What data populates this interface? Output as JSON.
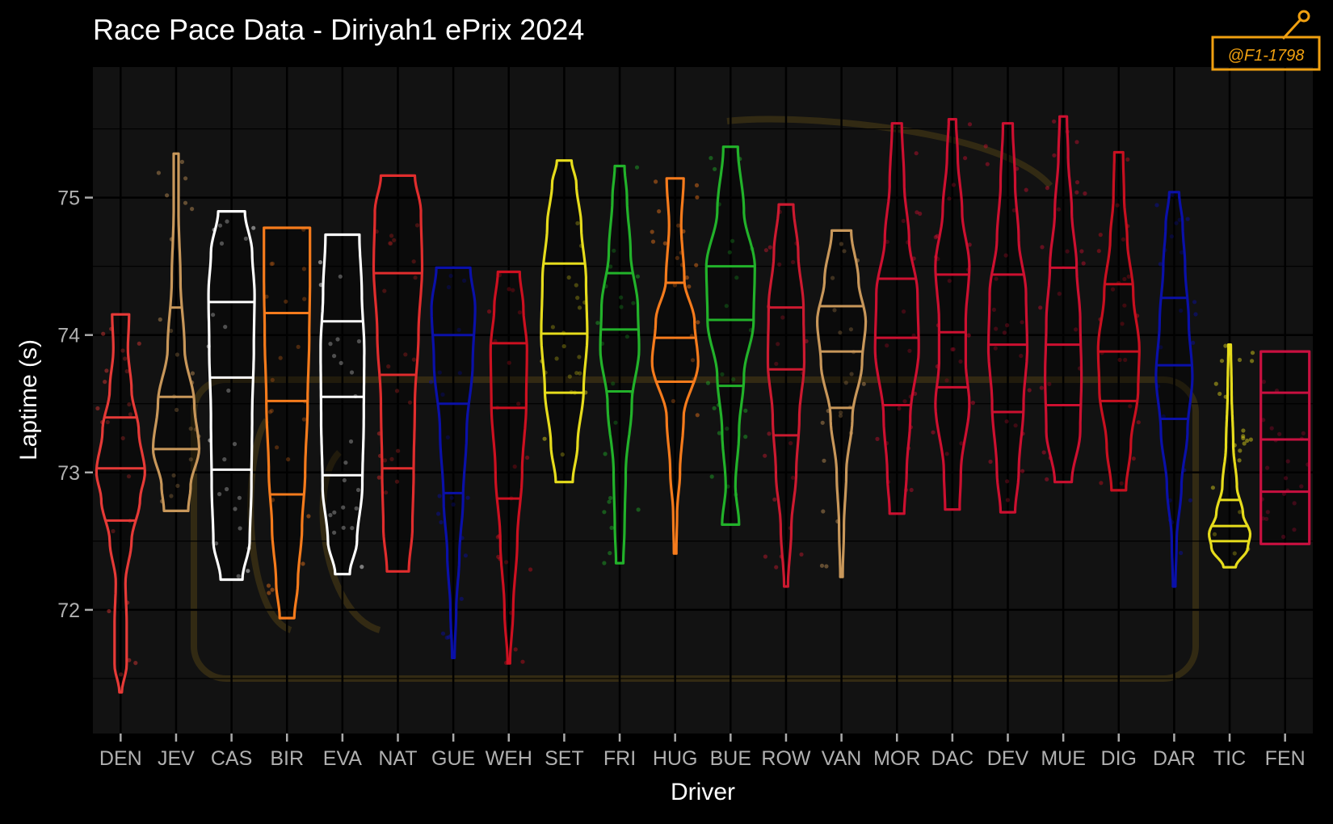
{
  "chart_data": {
    "type": "violin",
    "title": "Race Pace Data - Diriyah1 ePrix 2024",
    "xlabel": "Driver",
    "ylabel": "Laptime (s)",
    "ylim": [
      71.1,
      75.95
    ],
    "yticks": [
      72,
      73,
      74,
      75
    ],
    "grid": true,
    "legend": "none",
    "watermark_text": "@F1-1798",
    "drivers": [
      {
        "name": "DEN",
        "color": "#e63a37",
        "min": 71.4,
        "max": 74.15,
        "quartiles": [
          72.65,
          73.03,
          73.4
        ],
        "profile": [
          [
            71.4,
            0.05
          ],
          [
            71.6,
            0.25
          ],
          [
            71.9,
            0.25
          ],
          [
            72.2,
            0.2
          ],
          [
            72.5,
            0.45
          ],
          [
            72.8,
            0.8
          ],
          [
            73.0,
            1.0
          ],
          [
            73.3,
            0.75
          ],
          [
            73.6,
            0.45
          ],
          [
            73.9,
            0.3
          ],
          [
            74.15,
            0.35
          ]
        ]
      },
      {
        "name": "JEV",
        "color": "#c8975a",
        "min": 72.72,
        "max": 75.32,
        "quartiles": [
          73.17,
          73.55,
          74.2
        ],
        "profile": [
          [
            72.72,
            0.5
          ],
          [
            72.9,
            0.6
          ],
          [
            73.17,
            0.95
          ],
          [
            73.5,
            0.75
          ],
          [
            73.9,
            0.35
          ],
          [
            74.4,
            0.18
          ],
          [
            74.9,
            0.1
          ],
          [
            75.32,
            0.1
          ]
        ]
      },
      {
        "name": "CAS",
        "color": "#ffffff",
        "min": 72.22,
        "max": 74.9,
        "quartiles": [
          73.02,
          73.69,
          74.24
        ],
        "profile": [
          [
            72.22,
            0.45
          ],
          [
            72.5,
            0.75
          ],
          [
            72.9,
            0.82
          ],
          [
            73.4,
            0.85
          ],
          [
            73.9,
            0.92
          ],
          [
            74.3,
            0.95
          ],
          [
            74.6,
            0.85
          ],
          [
            74.9,
            0.55
          ]
        ]
      },
      {
        "name": "BIR",
        "color": "#f57b1c",
        "min": 71.94,
        "max": 74.78,
        "quartiles": [
          72.84,
          73.52,
          74.16
        ],
        "profile": [
          [
            71.94,
            0.3
          ],
          [
            72.2,
            0.45
          ],
          [
            72.6,
            0.62
          ],
          [
            73.0,
            0.75
          ],
          [
            73.5,
            0.85
          ],
          [
            74.0,
            0.92
          ],
          [
            74.4,
            0.95
          ],
          [
            74.78,
            0.95
          ]
        ]
      },
      {
        "name": "EVA",
        "color": "#ffffff",
        "min": 72.26,
        "max": 74.73,
        "quartiles": [
          72.98,
          73.55,
          74.1
        ],
        "profile": [
          [
            72.26,
            0.3
          ],
          [
            72.5,
            0.6
          ],
          [
            72.9,
            0.82
          ],
          [
            73.4,
            0.88
          ],
          [
            73.9,
            0.9
          ],
          [
            74.3,
            0.8
          ],
          [
            74.73,
            0.7
          ]
        ]
      },
      {
        "name": "NAT",
        "color": "#e02d2d",
        "min": 72.28,
        "max": 75.16,
        "quartiles": [
          73.03,
          73.71,
          74.45
        ],
        "profile": [
          [
            72.28,
            0.45
          ],
          [
            72.6,
            0.6
          ],
          [
            73.0,
            0.65
          ],
          [
            73.5,
            0.7
          ],
          [
            74.0,
            0.85
          ],
          [
            74.5,
            1.0
          ],
          [
            74.9,
            0.95
          ],
          [
            75.16,
            0.7
          ]
        ]
      },
      {
        "name": "GUE",
        "color": "#0a10a8",
        "min": 71.65,
        "max": 74.49,
        "quartiles": [
          72.85,
          73.5,
          74.0
        ],
        "profile": [
          [
            71.65,
            0.05
          ],
          [
            72.0,
            0.12
          ],
          [
            72.4,
            0.25
          ],
          [
            72.8,
            0.4
          ],
          [
            73.3,
            0.55
          ],
          [
            73.8,
            0.8
          ],
          [
            74.2,
            0.9
          ],
          [
            74.49,
            0.7
          ]
        ]
      },
      {
        "name": "WEH",
        "color": "#cc1020",
        "min": 71.61,
        "max": 74.46,
        "quartiles": [
          72.81,
          73.47,
          73.94
        ],
        "profile": [
          [
            71.61,
            0.05
          ],
          [
            72.0,
            0.18
          ],
          [
            72.5,
            0.35
          ],
          [
            73.0,
            0.55
          ],
          [
            73.5,
            0.72
          ],
          [
            73.9,
            0.75
          ],
          [
            74.2,
            0.6
          ],
          [
            74.46,
            0.45
          ]
        ]
      },
      {
        "name": "SET",
        "color": "#e6dc1c",
        "min": 72.93,
        "max": 75.27,
        "quartiles": [
          73.58,
          74.01,
          74.52
        ],
        "profile": [
          [
            72.93,
            0.35
          ],
          [
            73.2,
            0.55
          ],
          [
            73.6,
            0.8
          ],
          [
            74.0,
            0.95
          ],
          [
            74.4,
            0.9
          ],
          [
            74.8,
            0.7
          ],
          [
            75.1,
            0.5
          ],
          [
            75.27,
            0.3
          ]
        ]
      },
      {
        "name": "FRI",
        "color": "#22b22a",
        "min": 72.34,
        "max": 75.23,
        "quartiles": [
          73.59,
          74.04,
          74.45
        ],
        "profile": [
          [
            72.34,
            0.15
          ],
          [
            72.6,
            0.2
          ],
          [
            73.0,
            0.25
          ],
          [
            73.5,
            0.5
          ],
          [
            73.9,
            0.8
          ],
          [
            74.2,
            0.75
          ],
          [
            74.6,
            0.45
          ],
          [
            75.0,
            0.3
          ],
          [
            75.23,
            0.2
          ]
        ]
      },
      {
        "name": "HUG",
        "color": "#f57b1c",
        "min": 72.41,
        "max": 75.14,
        "quartiles": [
          73.66,
          73.98,
          74.38
        ],
        "profile": [
          [
            72.41,
            0.05
          ],
          [
            72.7,
            0.08
          ],
          [
            73.0,
            0.2
          ],
          [
            73.4,
            0.35
          ],
          [
            73.8,
            0.95
          ],
          [
            74.1,
            0.8
          ],
          [
            74.4,
            0.38
          ],
          [
            74.8,
            0.25
          ],
          [
            75.14,
            0.35
          ]
        ]
      },
      {
        "name": "BUE",
        "color": "#22b22a",
        "min": 72.62,
        "max": 75.37,
        "quartiles": [
          73.63,
          74.11,
          74.5
        ],
        "profile": [
          [
            72.62,
            0.35
          ],
          [
            72.9,
            0.2
          ],
          [
            73.3,
            0.35
          ],
          [
            73.7,
            0.55
          ],
          [
            74.1,
            0.95
          ],
          [
            74.5,
            1.0
          ],
          [
            74.9,
            0.55
          ],
          [
            75.37,
            0.3
          ]
        ]
      },
      {
        "name": "ROW",
        "color": "#cc1a30",
        "min": 72.17,
        "max": 74.95,
        "quartiles": [
          73.27,
          73.75,
          74.2
        ],
        "profile": [
          [
            72.17,
            0.08
          ],
          [
            72.6,
            0.22
          ],
          [
            73.0,
            0.42
          ],
          [
            73.4,
            0.55
          ],
          [
            73.8,
            0.75
          ],
          [
            74.2,
            0.72
          ],
          [
            74.6,
            0.5
          ],
          [
            74.95,
            0.3
          ]
        ]
      },
      {
        "name": "VAN",
        "color": "#c8975a",
        "min": 72.24,
        "max": 74.76,
        "quartiles": [
          73.47,
          73.88,
          74.21
        ],
        "profile": [
          [
            72.24,
            0.05
          ],
          [
            72.6,
            0.1
          ],
          [
            73.0,
            0.2
          ],
          [
            73.4,
            0.45
          ],
          [
            73.8,
            0.85
          ],
          [
            74.1,
            1.0
          ],
          [
            74.4,
            0.7
          ],
          [
            74.76,
            0.4
          ]
        ]
      },
      {
        "name": "MOR",
        "color": "#cc1030",
        "min": 72.7,
        "max": 75.54,
        "quartiles": [
          73.49,
          73.98,
          74.41
        ],
        "profile": [
          [
            72.7,
            0.3
          ],
          [
            73.0,
            0.4
          ],
          [
            73.4,
            0.55
          ],
          [
            73.9,
            0.9
          ],
          [
            74.3,
            0.85
          ],
          [
            74.7,
            0.5
          ],
          [
            75.1,
            0.3
          ],
          [
            75.54,
            0.2
          ]
        ]
      },
      {
        "name": "DAC",
        "color": "#cc1030",
        "min": 72.73,
        "max": 75.57,
        "quartiles": [
          73.62,
          74.02,
          74.44
        ],
        "profile": [
          [
            72.73,
            0.3
          ],
          [
            73.0,
            0.35
          ],
          [
            73.5,
            0.7
          ],
          [
            73.8,
            0.55
          ],
          [
            74.1,
            0.55
          ],
          [
            74.5,
            0.7
          ],
          [
            74.9,
            0.4
          ],
          [
            75.3,
            0.22
          ],
          [
            75.57,
            0.15
          ]
        ]
      },
      {
        "name": "DEV",
        "color": "#cc1030",
        "min": 72.71,
        "max": 75.54,
        "quartiles": [
          73.44,
          73.93,
          74.44
        ],
        "profile": [
          [
            72.71,
            0.3
          ],
          [
            73.0,
            0.45
          ],
          [
            73.5,
            0.65
          ],
          [
            73.9,
            0.8
          ],
          [
            74.3,
            0.75
          ],
          [
            74.7,
            0.45
          ],
          [
            75.1,
            0.3
          ],
          [
            75.54,
            0.2
          ]
        ]
      },
      {
        "name": "MUE",
        "color": "#cc1030",
        "min": 72.93,
        "max": 75.59,
        "quartiles": [
          73.49,
          73.93,
          74.49
        ],
        "profile": [
          [
            72.93,
            0.35
          ],
          [
            73.3,
            0.7
          ],
          [
            73.7,
            0.75
          ],
          [
            74.1,
            0.7
          ],
          [
            74.5,
            0.55
          ],
          [
            74.9,
            0.35
          ],
          [
            75.3,
            0.2
          ],
          [
            75.59,
            0.15
          ]
        ]
      },
      {
        "name": "DIG",
        "color": "#c81020",
        "min": 72.87,
        "max": 75.33,
        "quartiles": [
          73.52,
          73.88,
          74.37
        ],
        "profile": [
          [
            72.87,
            0.3
          ],
          [
            73.2,
            0.5
          ],
          [
            73.6,
            0.8
          ],
          [
            73.9,
            0.85
          ],
          [
            74.3,
            0.6
          ],
          [
            74.7,
            0.35
          ],
          [
            75.0,
            0.22
          ],
          [
            75.33,
            0.18
          ]
        ]
      },
      {
        "name": "DAR",
        "color": "#0a10a8",
        "min": 72.17,
        "max": 75.04,
        "quartiles": [
          73.39,
          73.78,
          74.27
        ],
        "profile": [
          [
            72.17,
            0.05
          ],
          [
            72.5,
            0.1
          ],
          [
            72.9,
            0.3
          ],
          [
            73.3,
            0.55
          ],
          [
            73.7,
            0.75
          ],
          [
            74.1,
            0.6
          ],
          [
            74.5,
            0.45
          ],
          [
            74.8,
            0.35
          ],
          [
            75.04,
            0.2
          ]
        ]
      },
      {
        "name": "TIC",
        "color": "#e6dc1c",
        "min": 72.31,
        "max": 73.93,
        "quartiles": [
          72.5,
          72.61,
          72.8
        ],
        "profile": [
          [
            72.31,
            0.25
          ],
          [
            72.45,
            0.75
          ],
          [
            72.55,
            0.85
          ],
          [
            72.7,
            0.55
          ],
          [
            72.9,
            0.3
          ],
          [
            73.2,
            0.15
          ],
          [
            73.6,
            0.08
          ],
          [
            73.93,
            0.05
          ]
        ]
      },
      {
        "name": "FEN",
        "color": "#c81040",
        "min": 72.48,
        "max": 73.88,
        "quartiles": [
          72.86,
          73.24,
          73.58
        ],
        "profile": [
          [
            72.48,
            1.0
          ],
          [
            72.8,
            1.0
          ],
          [
            73.2,
            1.0
          ],
          [
            73.6,
            1.0
          ],
          [
            73.88,
            1.0
          ]
        ]
      }
    ]
  }
}
